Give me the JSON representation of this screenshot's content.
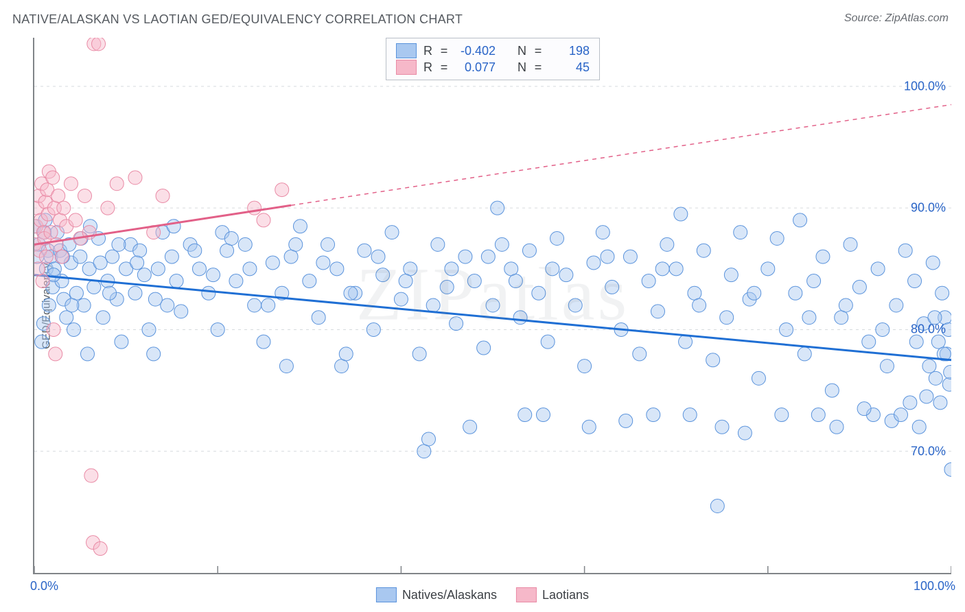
{
  "title": "NATIVE/ALASKAN VS LAOTIAN GED/EQUIVALENCY CORRELATION CHART",
  "source_label": "Source: ZipAtlas.com",
  "ylabel": "GED/Equivalency",
  "watermark": "ZIPatlas",
  "chart": {
    "type": "scatter",
    "background_color": "#ffffff",
    "grid_color": "#d6dade",
    "axis_color": "#808488",
    "xlim": [
      0,
      100
    ],
    "ylim": [
      60,
      104
    ],
    "xticks": [
      0,
      20,
      40,
      60,
      80,
      100
    ],
    "xtick_labels_shown": {
      "0": "0.0%",
      "100": "100.0%"
    },
    "yticks": [
      70,
      80,
      90,
      100
    ],
    "ytick_labels": [
      "70.0%",
      "80.0%",
      "90.0%",
      "100.0%"
    ],
    "marker_radius": 10,
    "marker_opacity": 0.45,
    "series": [
      {
        "id": "natives_alaskans",
        "label": "Natives/Alaskans",
        "fill_color": "#a9c8f0",
        "stroke_color": "#5a93dc",
        "trend_color": "#1f6fd4",
        "trend_width": 3,
        "R": "-0.402",
        "N": "198",
        "trend": {
          "x1": 0,
          "y1": 84.5,
          "x2": 100,
          "y2": 77.5,
          "solid_until_x": 100
        },
        "points": [
          [
            0,
            88.5
          ],
          [
            0.5,
            87
          ],
          [
            0.8,
            79
          ],
          [
            1,
            80.5
          ],
          [
            1.1,
            88
          ],
          [
            1.3,
            85
          ],
          [
            1.5,
            86.5
          ],
          [
            1.6,
            82
          ],
          [
            1.8,
            86
          ],
          [
            2,
            83.5
          ],
          [
            2.2,
            85
          ],
          [
            2.5,
            88
          ],
          [
            2.8,
            86.5
          ],
          [
            3,
            84
          ],
          [
            3.2,
            82.5
          ],
          [
            3.5,
            81
          ],
          [
            3.8,
            87
          ],
          [
            4,
            85.5
          ],
          [
            4.3,
            80
          ],
          [
            4.6,
            83
          ],
          [
            5,
            86
          ],
          [
            5.4,
            82
          ],
          [
            5.8,
            78
          ],
          [
            6,
            85
          ],
          [
            6.5,
            83.5
          ],
          [
            7,
            87.5
          ],
          [
            7.5,
            81
          ],
          [
            8,
            84
          ],
          [
            8.5,
            86
          ],
          [
            9,
            82.5
          ],
          [
            9.5,
            79
          ],
          [
            10,
            85
          ],
          [
            10.5,
            87
          ],
          [
            11,
            83
          ],
          [
            11.5,
            86.5
          ],
          [
            12,
            84.5
          ],
          [
            12.5,
            80
          ],
          [
            13,
            78
          ],
          [
            13.5,
            85
          ],
          [
            14,
            88
          ],
          [
            14.5,
            82
          ],
          [
            15,
            86
          ],
          [
            15.5,
            84
          ],
          [
            16,
            81.5
          ],
          [
            17,
            87
          ],
          [
            18,
            85
          ],
          [
            19,
            83
          ],
          [
            20,
            80
          ],
          [
            20.5,
            88
          ],
          [
            21,
            86.5
          ],
          [
            22,
            84
          ],
          [
            23,
            87
          ],
          [
            24,
            82
          ],
          [
            25,
            79
          ],
          [
            26,
            85.5
          ],
          [
            27,
            83
          ],
          [
            27.5,
            77
          ],
          [
            28,
            86
          ],
          [
            29,
            88.5
          ],
          [
            30,
            84
          ],
          [
            31,
            81
          ],
          [
            32,
            87
          ],
          [
            33,
            85
          ],
          [
            33.5,
            77
          ],
          [
            34,
            78
          ],
          [
            35,
            83
          ],
          [
            36,
            86.5
          ],
          [
            37,
            80
          ],
          [
            38,
            84.5
          ],
          [
            39,
            88
          ],
          [
            40,
            82.5
          ],
          [
            41,
            85
          ],
          [
            42,
            78
          ],
          [
            42.5,
            70
          ],
          [
            43,
            71
          ],
          [
            43.5,
            82
          ],
          [
            44,
            87
          ],
          [
            45,
            83.5
          ],
          [
            46,
            80.5
          ],
          [
            47,
            86
          ],
          [
            48,
            84
          ],
          [
            49,
            78.5
          ],
          [
            50,
            82
          ],
          [
            50.5,
            90
          ],
          [
            51,
            87
          ],
          [
            52,
            85
          ],
          [
            53,
            81
          ],
          [
            53.5,
            73
          ],
          [
            54,
            86.5
          ],
          [
            55,
            83
          ],
          [
            56,
            79
          ],
          [
            57,
            87.5
          ],
          [
            58,
            84.5
          ],
          [
            59,
            82
          ],
          [
            60,
            77
          ],
          [
            60.5,
            72
          ],
          [
            61,
            85.5
          ],
          [
            62,
            88
          ],
          [
            63,
            83.5
          ],
          [
            64,
            80
          ],
          [
            65,
            86
          ],
          [
            66,
            78
          ],
          [
            67,
            84
          ],
          [
            67.5,
            73
          ],
          [
            68,
            81.5
          ],
          [
            69,
            87
          ],
          [
            70,
            85
          ],
          [
            70.5,
            89.5
          ],
          [
            71,
            79
          ],
          [
            72,
            83
          ],
          [
            73,
            86.5
          ],
          [
            74,
            77.5
          ],
          [
            74.5,
            65.5
          ],
          [
            75,
            72
          ],
          [
            75.5,
            81
          ],
          [
            76,
            84.5
          ],
          [
            77,
            88
          ],
          [
            78,
            82.5
          ],
          [
            79,
            76
          ],
          [
            80,
            85
          ],
          [
            81,
            87.5
          ],
          [
            81.5,
            73
          ],
          [
            82,
            80
          ],
          [
            83,
            83
          ],
          [
            83.5,
            89
          ],
          [
            84,
            78
          ],
          [
            85,
            84
          ],
          [
            86,
            86
          ],
          [
            87,
            75
          ],
          [
            87.5,
            72
          ],
          [
            88,
            81
          ],
          [
            89,
            87
          ],
          [
            90,
            83.5
          ],
          [
            91,
            79
          ],
          [
            91.5,
            73
          ],
          [
            92,
            85
          ],
          [
            93,
            77
          ],
          [
            93.5,
            72.5
          ],
          [
            94,
            82
          ],
          [
            95,
            86.5
          ],
          [
            95.5,
            74
          ],
          [
            96,
            84
          ],
          [
            96.5,
            72
          ],
          [
            97,
            80.5
          ],
          [
            97.3,
            74.5
          ],
          [
            97.6,
            77
          ],
          [
            98,
            85.5
          ],
          [
            98.3,
            76
          ],
          [
            98.6,
            79
          ],
          [
            98.8,
            74
          ],
          [
            99,
            83
          ],
          [
            99.3,
            81
          ],
          [
            99.5,
            78
          ],
          [
            99.7,
            80
          ],
          [
            99.8,
            75.5
          ],
          [
            99.9,
            76.5
          ],
          [
            100,
            68.5
          ],
          [
            0.3,
            86
          ],
          [
            1.2,
            89
          ],
          [
            2.1,
            84.5
          ],
          [
            3.1,
            86
          ],
          [
            4.1,
            82
          ],
          [
            5.1,
            87.5
          ],
          [
            6.1,
            88.5
          ],
          [
            7.2,
            85.5
          ],
          [
            8.2,
            83
          ],
          [
            9.2,
            87
          ],
          [
            11.2,
            85.5
          ],
          [
            13.2,
            82.5
          ],
          [
            15.2,
            88.5
          ],
          [
            17.5,
            86.5
          ],
          [
            19.5,
            84.5
          ],
          [
            21.5,
            87.5
          ],
          [
            23.5,
            85
          ],
          [
            25.5,
            82
          ],
          [
            28.5,
            87
          ],
          [
            31.5,
            85.5
          ],
          [
            34.5,
            83
          ],
          [
            37.5,
            86
          ],
          [
            40.5,
            84
          ],
          [
            45.5,
            85
          ],
          [
            49.5,
            86
          ],
          [
            52.5,
            84
          ],
          [
            56.5,
            85
          ],
          [
            62.5,
            86
          ],
          [
            68.5,
            85
          ],
          [
            72.5,
            82
          ],
          [
            78.5,
            83
          ],
          [
            84.5,
            81
          ],
          [
            88.5,
            82
          ],
          [
            92.5,
            80
          ],
          [
            96.2,
            79
          ],
          [
            98.2,
            81
          ],
          [
            99.2,
            78
          ],
          [
            47.5,
            72
          ],
          [
            55.5,
            73
          ],
          [
            64.5,
            72.5
          ],
          [
            71.5,
            73
          ],
          [
            77.5,
            71.5
          ],
          [
            85.5,
            73
          ],
          [
            90.5,
            73.5
          ],
          [
            94.5,
            73
          ]
        ]
      },
      {
        "id": "laotians",
        "label": "Laotians",
        "fill_color": "#f6b8c9",
        "stroke_color": "#e98aa5",
        "trend_color": "#e26088",
        "trend_width": 3,
        "R": "0.077",
        "N": "45",
        "trend": {
          "x1": 0,
          "y1": 87,
          "x2": 100,
          "y2": 98.5,
          "solid_until_x": 28
        },
        "points": [
          [
            0,
            87
          ],
          [
            0.2,
            88.5
          ],
          [
            0.3,
            90
          ],
          [
            0.4,
            85
          ],
          [
            0.5,
            91
          ],
          [
            0.6,
            86.5
          ],
          [
            0.7,
            89
          ],
          [
            0.8,
            92
          ],
          [
            0.9,
            84
          ],
          [
            1,
            88
          ],
          [
            1.1,
            87.5
          ],
          [
            1.2,
            90.5
          ],
          [
            1.3,
            86
          ],
          [
            1.4,
            91.5
          ],
          [
            1.5,
            89.5
          ],
          [
            1.6,
            93
          ],
          [
            1.8,
            88
          ],
          [
            2,
            92.5
          ],
          [
            2.2,
            90
          ],
          [
            2.4,
            87
          ],
          [
            2.6,
            91
          ],
          [
            2.8,
            89
          ],
          [
            3,
            86
          ],
          [
            3.2,
            90
          ],
          [
            3.5,
            88.5
          ],
          [
            4,
            92
          ],
          [
            4.5,
            89
          ],
          [
            5,
            87.5
          ],
          [
            5.5,
            91
          ],
          [
            6,
            88
          ],
          [
            6.5,
            103.5
          ],
          [
            7,
            103.5
          ],
          [
            8,
            90
          ],
          [
            9,
            92
          ],
          [
            11,
            92.5
          ],
          [
            13,
            88
          ],
          [
            14,
            91
          ],
          [
            24,
            90
          ],
          [
            25,
            89
          ],
          [
            27,
            91.5
          ],
          [
            2.1,
            80
          ],
          [
            2.3,
            78
          ],
          [
            6.2,
            68
          ],
          [
            6.4,
            62.5
          ],
          [
            7.2,
            62
          ]
        ]
      }
    ]
  },
  "legend_box": {
    "rows": [
      {
        "swatch_fill": "#a9c8f0",
        "swatch_stroke": "#5a93dc",
        "R_label": "R",
        "R_val": "-0.402",
        "N_label": "N",
        "N_val": "198"
      },
      {
        "swatch_fill": "#f6b8c9",
        "swatch_stroke": "#e98aa5",
        "R_label": "R",
        "R_val": "0.077",
        "N_label": "N",
        "N_val": "45"
      }
    ]
  },
  "bottom_legend": [
    {
      "swatch_fill": "#a9c8f0",
      "swatch_stroke": "#5a93dc",
      "label": "Natives/Alaskans"
    },
    {
      "swatch_fill": "#f6b8c9",
      "swatch_stroke": "#e98aa5",
      "label": "Laotians"
    }
  ]
}
